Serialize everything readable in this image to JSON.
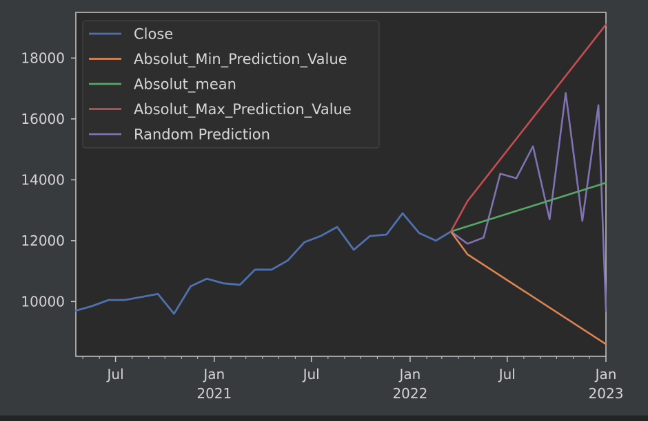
{
  "chart_data": {
    "type": "line",
    "title": "",
    "xlabel": "",
    "ylabel": "",
    "xlim": [
      "2020-04-18",
      "2023-01-01"
    ],
    "ylim": [
      8200,
      19500
    ],
    "grid": false,
    "legend_position": "top-left",
    "y_ticks": [
      {
        "value": 10000,
        "label": "10000"
      },
      {
        "value": 12000,
        "label": "12000"
      },
      {
        "value": 14000,
        "label": "14000"
      },
      {
        "value": 16000,
        "label": "16000"
      },
      {
        "value": 18000,
        "label": "18000"
      }
    ],
    "x_ticks": [
      {
        "date": "2020-07-01",
        "label": "Jul",
        "sublabel": ""
      },
      {
        "date": "2021-01-01",
        "label": "Jan",
        "sublabel": "2021"
      },
      {
        "date": "2021-07-01",
        "label": "Jul",
        "sublabel": ""
      },
      {
        "date": "2022-01-01",
        "label": "Jan",
        "sublabel": "2022"
      },
      {
        "date": "2022-07-01",
        "label": "Jul",
        "sublabel": ""
      },
      {
        "date": "2023-01-01",
        "label": "Jan",
        "sublabel": "2023"
      }
    ],
    "series": [
      {
        "name": "Close",
        "color": "#4c72b0",
        "x": [
          "2020-04-18",
          "2020-05-18",
          "2020-06-18",
          "2020-07-18",
          "2020-08-18",
          "2020-09-18",
          "2020-10-18",
          "2020-11-18",
          "2020-12-18",
          "2021-01-18",
          "2021-02-18",
          "2021-03-18",
          "2021-04-18",
          "2021-05-18",
          "2021-06-18",
          "2021-07-18",
          "2021-08-18",
          "2021-09-18",
          "2021-10-18",
          "2021-11-18",
          "2021-12-18",
          "2022-01-18",
          "2022-02-18",
          "2022-03-18"
        ],
        "y": [
          9700,
          9850,
          10050,
          10050,
          10150,
          10250,
          9600,
          10500,
          10750,
          10600,
          10550,
          11050,
          11050,
          11350,
          11950,
          12150,
          12450,
          11700,
          12150,
          12200,
          12900,
          12250,
          12000,
          12300
        ]
      },
      {
        "name": "Absolut_Min_Prediction_Value",
        "color": "#dd8452",
        "x": [
          "2022-03-18",
          "2022-04-18",
          "2023-01-01"
        ],
        "y": [
          12300,
          11550,
          8600
        ]
      },
      {
        "name": "Absolut_mean",
        "color": "#55a868",
        "x": [
          "2022-03-18",
          "2023-01-01"
        ],
        "y": [
          12300,
          13900
        ]
      },
      {
        "name": "Absolut_Max_Prediction_Value",
        "color": "#c44e52",
        "x": [
          "2022-03-18",
          "2022-04-18",
          "2023-01-01"
        ],
        "y": [
          12300,
          13300,
          19100
        ]
      },
      {
        "name": "Random Prediction",
        "color": "#8172b3",
        "x": [
          "2020-04-18",
          "2020-05-18",
          "2020-06-18",
          "2020-07-18",
          "2020-08-18",
          "2020-09-18",
          "2020-10-18",
          "2020-11-18",
          "2020-12-18",
          "2021-01-18",
          "2021-02-18",
          "2021-03-18",
          "2021-04-18",
          "2021-05-18",
          "2021-06-18",
          "2021-07-18",
          "2021-08-18",
          "2021-09-18",
          "2021-10-18",
          "2021-11-18",
          "2021-12-18",
          "2022-01-18",
          "2022-02-18",
          "2022-03-18",
          "2022-04-18",
          "2022-05-18",
          "2022-06-18",
          "2022-07-18",
          "2022-08-18",
          "2022-09-18",
          "2022-10-18",
          "2022-11-18",
          "2022-12-18",
          "2023-01-01"
        ],
        "y": [
          9700,
          9850,
          10050,
          10050,
          10150,
          10250,
          9600,
          10500,
          10750,
          10600,
          10550,
          11050,
          11050,
          11350,
          11950,
          12150,
          12450,
          11700,
          12150,
          12200,
          12900,
          12250,
          12000,
          12300,
          11900,
          12100,
          14200,
          14050,
          15100,
          12700,
          16850,
          12650,
          16450,
          9700
        ]
      }
    ]
  }
}
